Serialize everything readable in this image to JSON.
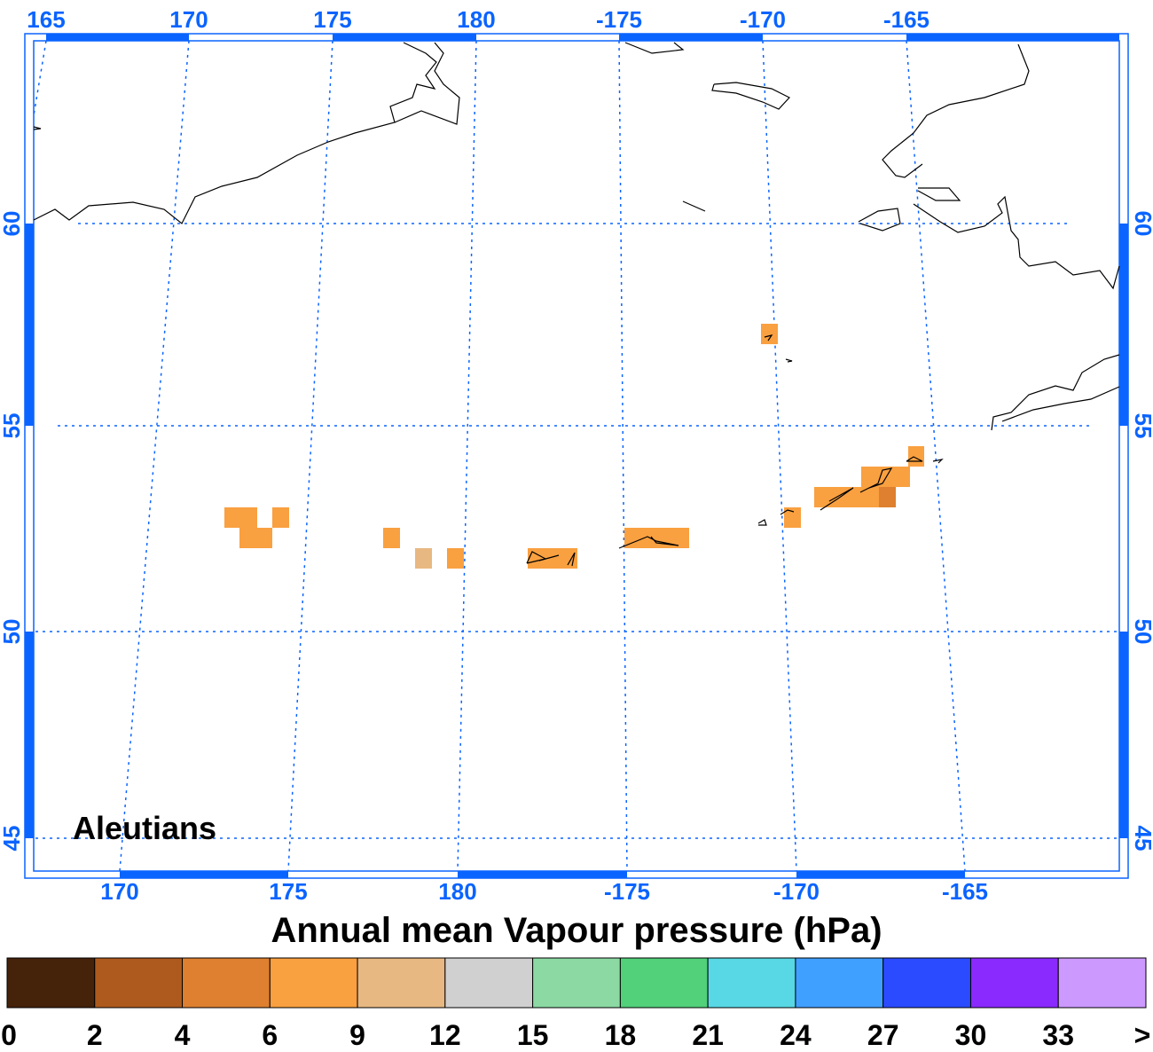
{
  "map": {
    "region_label": "Aleutians",
    "title": "Annual mean Vapour pressure (hPa)",
    "top_lon_labels": [
      "165",
      "170",
      "175",
      "180",
      "-175",
      "-170",
      "-165"
    ],
    "bottom_lon_labels": [
      "170",
      "175",
      "180",
      "-175",
      "-170",
      "-165"
    ],
    "lat_labels": [
      "60",
      "55",
      "50",
      "45"
    ],
    "frame_color": "#0a64ff",
    "data_color_main": "#f9a040",
    "data_color_light": "#e8b882",
    "data_color_dark": "#de8030"
  },
  "legend": {
    "colors": [
      "#45220a",
      "#ae5a1e",
      "#de8030",
      "#f9a040",
      "#e8b882",
      "#d0d0d0",
      "#8cd9a4",
      "#52d07a",
      "#58d8e4",
      "#40a0ff",
      "#2a4bff",
      "#8a2aff",
      "#cc99ff"
    ],
    "ticks": [
      "0",
      "2",
      "4",
      "6",
      "9",
      "12",
      "15",
      "18",
      "21",
      "24",
      "27",
      "30",
      "33",
      ">"
    ]
  }
}
